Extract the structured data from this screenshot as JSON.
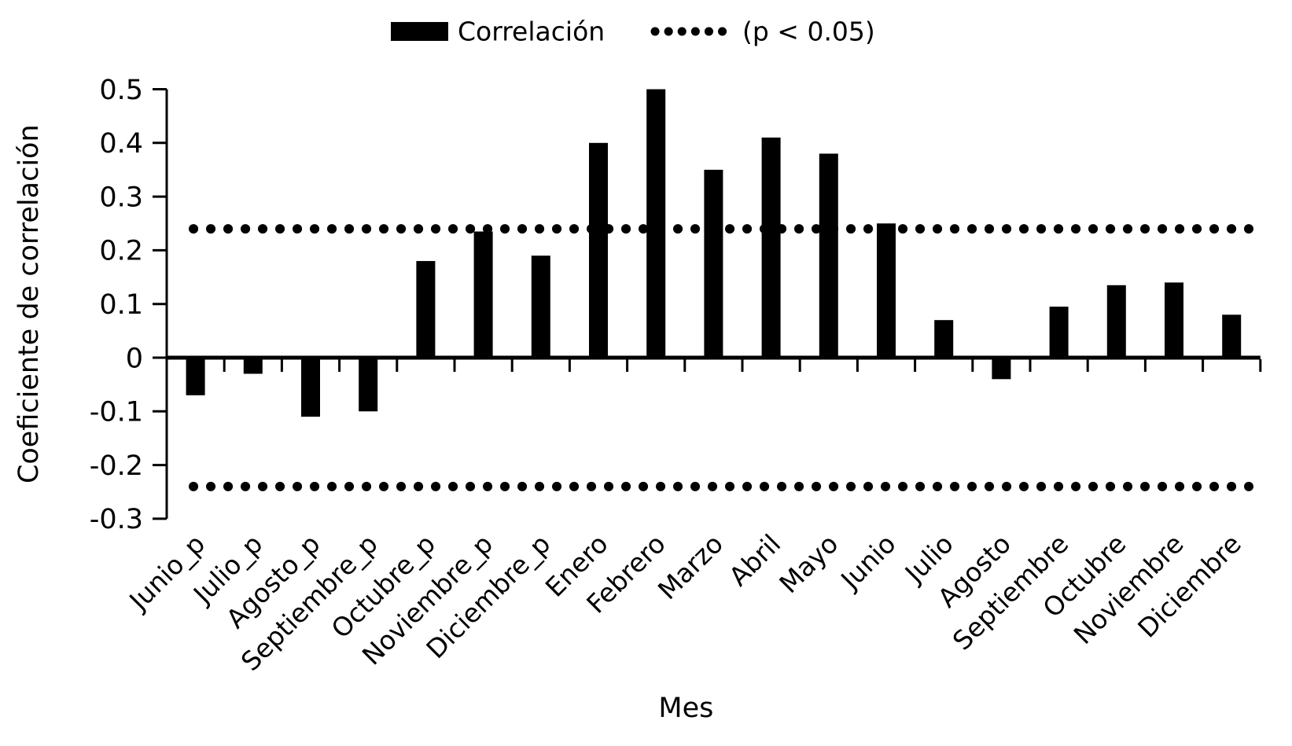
{
  "chart_data": {
    "type": "bar",
    "title": "",
    "xlabel": "Mes",
    "ylabel": "Coeficiente de correlación",
    "ylim": [
      -0.3,
      0.5
    ],
    "ytick_step": 0.1,
    "ytick_labels": [
      "0.5",
      "0.4",
      "0.3",
      "0.2",
      "0.1",
      "0",
      "-0.1",
      "-0.2",
      "-0.3"
    ],
    "ytick_values": [
      0.5,
      0.4,
      0.3,
      0.2,
      0.1,
      0,
      -0.1,
      -0.2,
      -0.3
    ],
    "categories": [
      "Junio_p",
      "Julio_p",
      "Agosto_p",
      "Septiembre_p",
      "Octubre_p",
      "Noviembre_p",
      "Diciembre_p",
      "Enero",
      "Febrero",
      "Marzo",
      "Abril",
      "Mayo",
      "Junio",
      "Julio",
      "Agosto",
      "Septiembre",
      "Octubre",
      "Noviembre",
      "Diciembre"
    ],
    "values": [
      -0.07,
      -0.03,
      -0.11,
      -0.1,
      0.18,
      0.235,
      0.19,
      0.4,
      0.5,
      0.35,
      0.41,
      0.38,
      0.25,
      0.07,
      -0.04,
      0.095,
      0.135,
      0.14,
      0.08
    ],
    "significance_lines": [
      0.24,
      -0.24
    ],
    "legend": [
      {
        "label": "Correlación",
        "marker": "solid-bar"
      },
      {
        "label": "(p < 0.05)",
        "marker": "dotted-line"
      }
    ],
    "legend_position": "top-center",
    "grid": false,
    "bar_color": "#000000",
    "significance_line_color": "#000000",
    "axis_color": "#000000",
    "background_color": "#ffffff"
  }
}
